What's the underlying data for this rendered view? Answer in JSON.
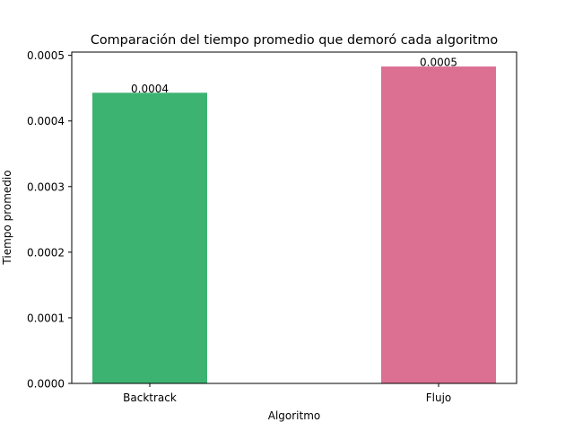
{
  "chart_data": {
    "type": "bar",
    "title": "Comparación del tiempo promedio que demoró cada algoritmo",
    "xlabel": "Algoritmo",
    "ylabel": "Tiempo promedio",
    "categories": [
      "Backtrack",
      "Flujo"
    ],
    "values": [
      0.000443,
      0.000483
    ],
    "data_labels": [
      "0.0004",
      "0.0005"
    ],
    "colors": [
      "#3cb371",
      "#db7093"
    ],
    "ylim": [
      0,
      0.000505
    ],
    "yticks": [
      0,
      0.0001,
      0.0002,
      0.0003,
      0.0004,
      0.0005
    ],
    "ytick_labels": [
      "0.0000",
      "0.0001",
      "0.0002",
      "0.0003",
      "0.0004",
      "0.0005"
    ],
    "grid": false,
    "legend": "none"
  }
}
